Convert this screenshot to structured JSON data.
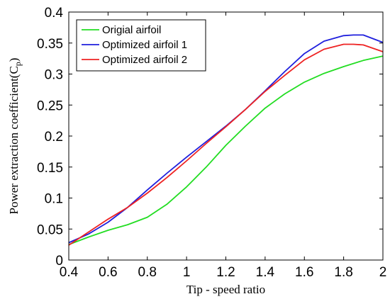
{
  "chart_data": {
    "type": "line",
    "xlabel": "Tip - speed ratio",
    "ylabel_main": "Power extraction coefficient(C",
    "ylabel_sub": "p",
    "ylabel_close": ")",
    "xlim": [
      0.4,
      2.0
    ],
    "ylim": [
      0,
      0.4
    ],
    "xticks": [
      0.4,
      0.6,
      0.8,
      1,
      1.2,
      1.4,
      1.6,
      1.8,
      2
    ],
    "yticks": [
      0,
      0.05,
      0.1,
      0.15,
      0.2,
      0.25,
      0.3,
      0.35,
      0.4
    ],
    "xtick_labels": [
      "0.4",
      "0.6",
      "0.8",
      "1",
      "1.2",
      "1.4",
      "1.6",
      "1.8",
      "2"
    ],
    "ytick_labels": [
      "0",
      "0.05",
      "0.1",
      "0.15",
      "0.2",
      "0.25",
      "0.3",
      "0.35",
      "0.4"
    ],
    "grid": false,
    "legend_position": "top-left",
    "series": [
      {
        "name": "Origial airfoil",
        "color": "#22dd22",
        "x": [
          0.4,
          0.5,
          0.6,
          0.7,
          0.8,
          0.9,
          1.0,
          1.1,
          1.2,
          1.3,
          1.4,
          1.5,
          1.6,
          1.7,
          1.8,
          1.9,
          2.0
        ],
        "y": [
          0.025,
          0.037,
          0.048,
          0.057,
          0.069,
          0.09,
          0.118,
          0.15,
          0.185,
          0.216,
          0.245,
          0.268,
          0.287,
          0.301,
          0.312,
          0.322,
          0.329
        ]
      },
      {
        "name": "Optimized airfoil 1",
        "color": "#1f1fdd",
        "x": [
          0.4,
          0.5,
          0.6,
          0.7,
          0.8,
          0.9,
          1.0,
          1.1,
          1.2,
          1.3,
          1.4,
          1.5,
          1.6,
          1.7,
          1.8,
          1.85,
          1.9,
          2.0
        ],
        "y": [
          0.028,
          0.042,
          0.061,
          0.085,
          0.113,
          0.14,
          0.166,
          0.191,
          0.216,
          0.243,
          0.273,
          0.304,
          0.333,
          0.353,
          0.362,
          0.363,
          0.363,
          0.351
        ]
      },
      {
        "name": "Optimized airfoil 2",
        "color": "#ee2222",
        "x": [
          0.4,
          0.5,
          0.6,
          0.7,
          0.8,
          0.9,
          1.0,
          1.1,
          1.2,
          1.3,
          1.4,
          1.5,
          1.6,
          1.7,
          1.8,
          1.85,
          1.9,
          2.0
        ],
        "y": [
          0.024,
          0.045,
          0.066,
          0.085,
          0.108,
          0.133,
          0.16,
          0.188,
          0.215,
          0.243,
          0.272,
          0.298,
          0.323,
          0.34,
          0.348,
          0.348,
          0.347,
          0.336
        ]
      }
    ]
  }
}
